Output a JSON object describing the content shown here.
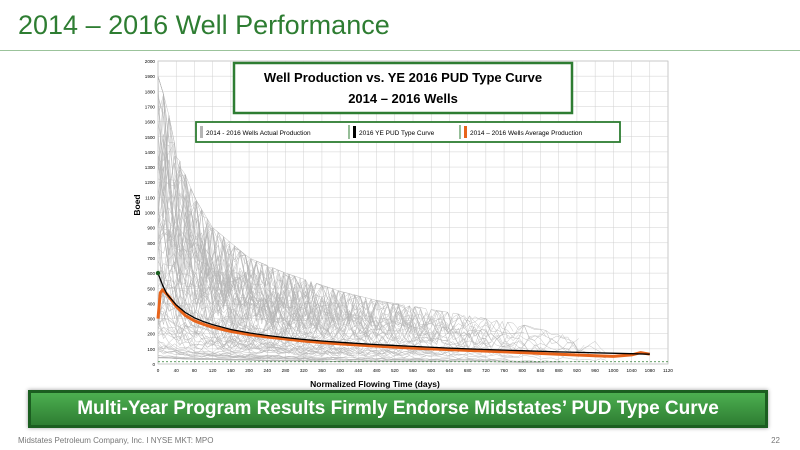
{
  "slide": {
    "title": "2014 – 2016 Well Performance",
    "banner": "Multi-Year Program Results Firmly Endorse Midstates’ PUD Type Curve",
    "footer_left": "Midstates Petroleum Company, Inc. I NYSE MKT: MPO",
    "page_number": "22"
  },
  "colors": {
    "title": "#2e7d32",
    "banner_bg": "#3d8f3f",
    "actual": "#b5b5b5",
    "type_curve": "#000000",
    "average": "#e8641b"
  },
  "chart_data": {
    "type": "line",
    "title_line1": "Well Production vs. YE 2016 PUD Type Curve",
    "title_line2": "2014 – 2016 Wells",
    "xlabel": "Normalized Flowing Time (days)",
    "ylabel": "Boed",
    "xlim": [
      0,
      1120
    ],
    "ylim": [
      0,
      2000
    ],
    "x_ticks": [
      0,
      40,
      80,
      120,
      160,
      200,
      240,
      280,
      320,
      360,
      400,
      440,
      480,
      520,
      560,
      600,
      640,
      680,
      720,
      760,
      800,
      840,
      880,
      920,
      960,
      1000,
      1040,
      1080,
      1120
    ],
    "y_ticks": [
      0,
      100,
      200,
      300,
      400,
      500,
      600,
      700,
      800,
      900,
      1000,
      1100,
      1200,
      1300,
      1400,
      1500,
      1600,
      1700,
      1800,
      1900,
      2000
    ],
    "grid": true,
    "legend_position": "top",
    "legend": [
      {
        "name": "2014 - 2016 Wells Actual Production",
        "color": "#b5b5b5"
      },
      {
        "name": "2016 YE PUD Type Curve",
        "color": "#000000"
      },
      {
        "name": "2014 – 2016 Wells Average Production",
        "color": "#e8641b"
      }
    ],
    "series": [
      {
        "name": "2016 YE PUD Type Curve",
        "x": [
          0,
          10,
          20,
          40,
          60,
          80,
          100,
          120,
          160,
          200,
          240,
          280,
          320,
          360,
          400,
          480,
          560,
          640,
          720,
          800,
          880,
          960,
          1040,
          1080
        ],
        "y": [
          600,
          520,
          460,
          390,
          340,
          305,
          280,
          260,
          228,
          205,
          188,
          174,
          162,
          152,
          143,
          128,
          116,
          105,
          96,
          88,
          80,
          74,
          68,
          65
        ]
      },
      {
        "name": "2014 – 2016 Wells Average Production",
        "x": [
          0,
          5,
          10,
          20,
          40,
          60,
          80,
          100,
          120,
          160,
          200,
          240,
          280,
          320,
          360,
          400,
          480,
          560,
          640,
          720,
          800,
          880,
          960,
          1000,
          1040,
          1060,
          1080
        ],
        "y": [
          300,
          470,
          490,
          460,
          380,
          320,
          285,
          262,
          243,
          215,
          195,
          178,
          165,
          152,
          142,
          133,
          118,
          105,
          95,
          85,
          75,
          65,
          55,
          50,
          60,
          75,
          65
        ]
      }
    ],
    "actual_band": {
      "name": "2014 - 2016 Wells Actual Production",
      "x": [
        0,
        20,
        40,
        80,
        120,
        160,
        200,
        240,
        280,
        320,
        360,
        400,
        480,
        560,
        640,
        720,
        800,
        880,
        960,
        1000
      ],
      "upper": [
        1900,
        1700,
        1400,
        1100,
        900,
        800,
        700,
        650,
        600,
        560,
        520,
        480,
        420,
        380,
        340,
        300,
        260,
        200,
        150,
        100
      ],
      "lower": [
        40,
        40,
        35,
        30,
        30,
        25,
        25,
        20,
        20,
        20,
        15,
        15,
        15,
        15,
        15,
        15,
        10,
        10,
        10,
        10
      ]
    }
  }
}
